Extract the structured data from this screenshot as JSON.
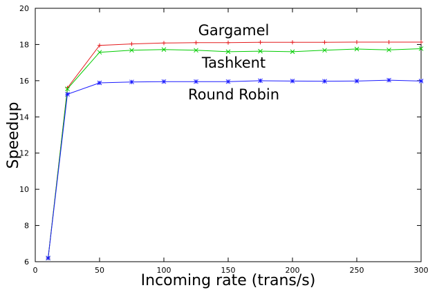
{
  "chart_data": {
    "type": "line",
    "title": "",
    "xlabel": "Incoming rate (trans/s)",
    "ylabel": "Speedup",
    "xlim": [
      0,
      300
    ],
    "ylim": [
      6,
      20
    ],
    "xticks": [
      0,
      50,
      100,
      150,
      200,
      250,
      300
    ],
    "yticks": [
      6,
      8,
      10,
      12,
      14,
      16,
      18,
      20
    ],
    "grid": false,
    "legend": "inline labels",
    "series": [
      {
        "name": "Gargamel",
        "color": "#e41a1c",
        "marker": "plus",
        "x": [
          10,
          25,
          50,
          75,
          100,
          125,
          150,
          175,
          200,
          225,
          250,
          275,
          300
        ],
        "y": [
          6.2,
          15.6,
          17.95,
          18.03,
          18.08,
          18.1,
          18.1,
          18.12,
          18.12,
          18.12,
          18.13,
          18.13,
          18.13
        ]
      },
      {
        "name": "Tashkent",
        "color": "#00cc00",
        "marker": "x",
        "x": [
          10,
          25,
          50,
          75,
          100,
          125,
          150,
          175,
          200,
          225,
          250,
          275,
          300
        ],
        "y": [
          6.2,
          15.55,
          17.57,
          17.68,
          17.72,
          17.68,
          17.6,
          17.63,
          17.6,
          17.68,
          17.75,
          17.7,
          17.77
        ]
      },
      {
        "name": "Round Robin",
        "color": "#1a1aff",
        "marker": "star",
        "x": [
          10,
          25,
          50,
          75,
          100,
          125,
          150,
          175,
          200,
          225,
          250,
          275,
          300
        ],
        "y": [
          6.2,
          15.25,
          15.88,
          15.93,
          15.95,
          15.95,
          15.95,
          16.0,
          15.98,
          15.97,
          15.98,
          16.03,
          15.98
        ]
      }
    ]
  }
}
